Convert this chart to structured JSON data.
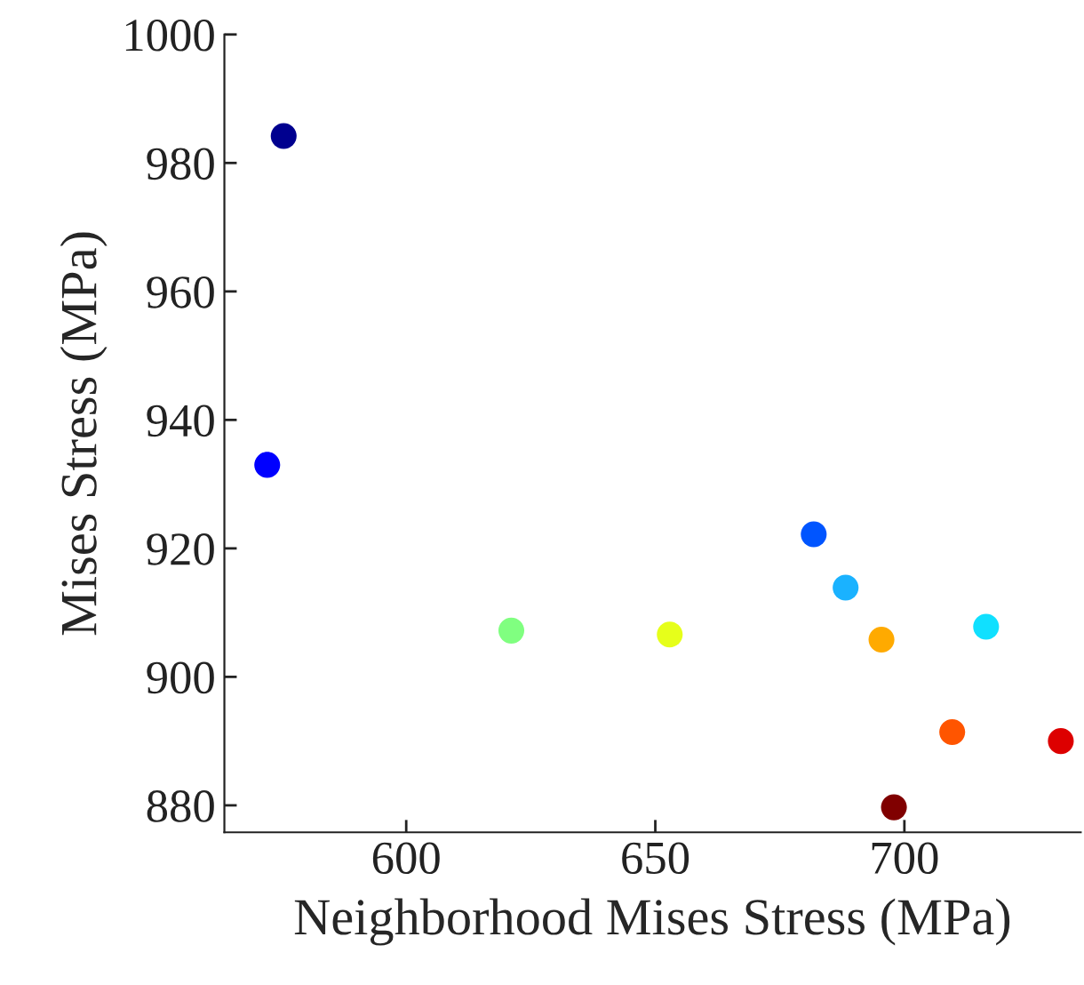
{
  "chart_data": {
    "type": "scatter",
    "xlabel": "Neighborhood Mises Stress (MPa)",
    "ylabel": "Mises Stress (MPa)",
    "x": [
      575.4,
      572.1,
      621.1,
      652.9,
      681.8,
      688.2,
      695.4,
      716.4,
      709.6,
      731.4,
      697.9
    ],
    "values": [
      984.2,
      933.0,
      907.2,
      906.6,
      922.2,
      913.9,
      905.8,
      907.8,
      891.4,
      890.0,
      879.7
    ],
    "colors": [
      "#00008f",
      "#0000ff",
      "#80ff80",
      "#e6ff1a",
      "#0055ff",
      "#1ab2ff",
      "#ffaa00",
      "#10e0ff",
      "#ff5500",
      "#dd0000",
      "#800000"
    ],
    "xlim": [
      563.5,
      735.4
    ],
    "ylim": [
      875.8,
      1000
    ],
    "xticks": [
      600,
      650,
      700
    ],
    "yticks": [
      880,
      900,
      920,
      940,
      960,
      980,
      1000
    ],
    "marker": "circle",
    "grid": false,
    "legend": false
  }
}
